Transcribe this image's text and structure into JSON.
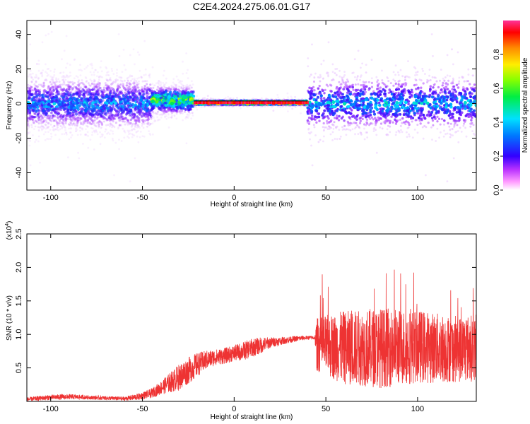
{
  "figure": {
    "title": "C2E4.2024.275.06.01.G17"
  },
  "chart_data": [
    {
      "type": "heatmap",
      "title": "C2E4.2024.275.06.01.G17",
      "xlabel": "Height of straight line (km)",
      "ylabel": "Frequency (Hz)",
      "xlim": [
        -113,
        132
      ],
      "ylim": [
        -50,
        48
      ],
      "xticks": [
        -100,
        -50,
        0,
        50,
        100
      ],
      "yticks": [
        -40,
        -20,
        0,
        20,
        40
      ],
      "grid": false,
      "colorbar": {
        "label": "Normalized spectral amplitude",
        "range": [
          0,
          1
        ],
        "ticks": [
          0.0,
          0.2,
          0.4,
          0.6,
          0.8
        ],
        "colormap": "rainbow (magenta-blue-cyan-green-yellow-red)"
      },
      "segments": [
        {
          "x_range": [
            -113,
            -45
          ],
          "freq_center": 0,
          "freq_spread": 9,
          "peak_amplitude": 0.45
        },
        {
          "x_range": [
            -45,
            -22
          ],
          "freq_center": 2,
          "freq_spread": 5,
          "peak_amplitude": 0.75
        },
        {
          "x_range": [
            -22,
            40
          ],
          "freq_center": 0.5,
          "freq_spread": 1,
          "peak_amplitude": 1.0
        },
        {
          "x_range": [
            40,
            132
          ],
          "freq_center": 0,
          "freq_spread": 9,
          "peak_amplitude": 0.5
        }
      ]
    },
    {
      "type": "line",
      "xlabel": "Height of straight line (km)",
      "ylabel": "SNR (10 * v/v)",
      "y_multiplier": "(x10^4)",
      "xlim": [
        -113,
        132
      ],
      "ylim": [
        0,
        2.5
      ],
      "xticks": [
        -100,
        -50,
        0,
        50,
        100
      ],
      "yticks": [
        0.5,
        1.0,
        1.5,
        2.0,
        2.5
      ],
      "grid": false,
      "series": [
        {
          "color": "#ee3333",
          "x": [
            -113,
            -100,
            -90,
            -80,
            -70,
            -60,
            -52,
            -45,
            -40,
            -35,
            -30,
            -25,
            -20,
            -15,
            -10,
            -5,
            0,
            5,
            10,
            15,
            20,
            25,
            30,
            35,
            40,
            44,
            45,
            60,
            80,
            100,
            120,
            132
          ],
          "y": [
            0.03,
            0.06,
            0.07,
            0.06,
            0.05,
            0.04,
            0.07,
            0.12,
            0.2,
            0.28,
            0.36,
            0.46,
            0.55,
            0.62,
            0.66,
            0.68,
            0.72,
            0.75,
            0.8,
            0.84,
            0.88,
            0.9,
            0.92,
            0.94,
            0.95,
            0.95,
            0.85,
            0.8,
            0.8,
            0.82,
            0.78,
            0.8
          ],
          "noise_amplitude": [
            0.03,
            0.04,
            0.04,
            0.03,
            0.03,
            0.03,
            0.05,
            0.07,
            0.1,
            0.15,
            0.2,
            0.2,
            0.18,
            0.14,
            0.12,
            0.12,
            0.12,
            0.14,
            0.14,
            0.12,
            0.08,
            0.06,
            0.05,
            0.04,
            0.03,
            0.03,
            0.4,
            0.55,
            0.6,
            0.55,
            0.5,
            0.5
          ]
        }
      ]
    }
  ]
}
